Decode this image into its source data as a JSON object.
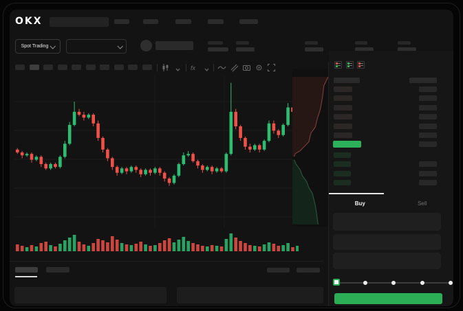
{
  "window": {
    "brand": "OKX"
  },
  "header": {
    "market_selector_label": "Spot Trading",
    "nav_placeholder_count": 5,
    "stat_placeholder_count": 5
  },
  "toolbar": {
    "timeframe_placeholder_count": 10,
    "icons": [
      "candlestick-chart",
      "chevron-down",
      "indicators-fx",
      "chevron-down",
      "line-overlay",
      "measure",
      "camera",
      "settings-gear",
      "fullscreen"
    ]
  },
  "chart_data": {
    "type": "candlestick",
    "x_unit": "time",
    "y_scale": {
      "min": 0,
      "max": 105
    },
    "grid": {
      "horizontal_lines": 5,
      "vertical_lines": 2
    },
    "colors": {
      "up": "#2ebd70",
      "down": "#ef5047"
    },
    "candles": [
      [
        54,
        55,
        51,
        52
      ],
      [
        52,
        53,
        48,
        50
      ],
      [
        50,
        52,
        49,
        51
      ],
      [
        51,
        52,
        45,
        47
      ],
      [
        47,
        50,
        46,
        49
      ],
      [
        49,
        50,
        42,
        44
      ],
      [
        44,
        45,
        40,
        41
      ],
      [
        41,
        45,
        40,
        44
      ],
      [
        44,
        45,
        41,
        42
      ],
      [
        42,
        50,
        41,
        49
      ],
      [
        49,
        60,
        48,
        58
      ],
      [
        58,
        73,
        57,
        71
      ],
      [
        71,
        87,
        70,
        80
      ],
      [
        80,
        82,
        77,
        78
      ],
      [
        78,
        80,
        74,
        76
      ],
      [
        76,
        79,
        75,
        78
      ],
      [
        78,
        79,
        70,
        72
      ],
      [
        72,
        74,
        60,
        62
      ],
      [
        62,
        63,
        52,
        54
      ],
      [
        54,
        55,
        46,
        48
      ],
      [
        48,
        49,
        40,
        42
      ],
      [
        42,
        43,
        36,
        38
      ],
      [
        38,
        42,
        37,
        41
      ],
      [
        41,
        42,
        37,
        39
      ],
      [
        39,
        43,
        38,
        42
      ],
      [
        42,
        43,
        38,
        40
      ],
      [
        40,
        41,
        35,
        37
      ],
      [
        37,
        41,
        36,
        40
      ],
      [
        40,
        41,
        36,
        38
      ],
      [
        38,
        42,
        37,
        41
      ],
      [
        41,
        42,
        36,
        38
      ],
      [
        38,
        39,
        32,
        34
      ],
      [
        34,
        35,
        29,
        31
      ],
      [
        31,
        37,
        30,
        36
      ],
      [
        36,
        45,
        35,
        44
      ],
      [
        44,
        52,
        43,
        50
      ],
      [
        50,
        53,
        49,
        51
      ],
      [
        51,
        52,
        45,
        46
      ],
      [
        46,
        47,
        41,
        43
      ],
      [
        43,
        44,
        38,
        40
      ],
      [
        40,
        43,
        39,
        42
      ],
      [
        42,
        43,
        37,
        39
      ],
      [
        39,
        42,
        38,
        41
      ],
      [
        41,
        42,
        38,
        39
      ],
      [
        39,
        52,
        38,
        51
      ],
      [
        51,
        100,
        50,
        80
      ],
      [
        80,
        82,
        68,
        70
      ],
      [
        70,
        71,
        60,
        62
      ],
      [
        62,
        63,
        54,
        56
      ],
      [
        56,
        58,
        52,
        54
      ],
      [
        54,
        58,
        53,
        57
      ],
      [
        57,
        58,
        52,
        54
      ],
      [
        54,
        61,
        53,
        60
      ],
      [
        60,
        74,
        59,
        72
      ],
      [
        72,
        74,
        65,
        67
      ],
      [
        67,
        68,
        62,
        64
      ],
      [
        64,
        72,
        63,
        71
      ],
      [
        71,
        86,
        70,
        83
      ],
      [
        83,
        87,
        78,
        80
      ],
      [
        80,
        95,
        79,
        92
      ]
    ],
    "volume": [
      10,
      8,
      6,
      9,
      7,
      12,
      14,
      9,
      7,
      11,
      16,
      20,
      24,
      14,
      10,
      8,
      12,
      18,
      16,
      13,
      22,
      17,
      12,
      10,
      9,
      11,
      14,
      10,
      8,
      9,
      12,
      16,
      19,
      13,
      17,
      21,
      15,
      12,
      10,
      8,
      7,
      9,
      8,
      7,
      18,
      26,
      20,
      15,
      12,
      9,
      8,
      7,
      10,
      13,
      11,
      8,
      9,
      12,
      6,
      8
    ]
  },
  "depth_chart": {
    "asks_color": "#8a423c",
    "bids_color": "#2d5c44",
    "asks_curve": [
      [
        100,
        0
      ],
      [
        88,
        6
      ],
      [
        84,
        14
      ],
      [
        78,
        22
      ],
      [
        70,
        28
      ],
      [
        64,
        34
      ],
      [
        52,
        38
      ],
      [
        46,
        44
      ],
      [
        30,
        48
      ],
      [
        22,
        50
      ],
      [
        8,
        52
      ],
      [
        5,
        54
      ]
    ],
    "bids_curve": [
      [
        5,
        56
      ],
      [
        10,
        59
      ],
      [
        22,
        63
      ],
      [
        28,
        67
      ],
      [
        40,
        71
      ],
      [
        46,
        75
      ],
      [
        56,
        79
      ],
      [
        60,
        83
      ],
      [
        64,
        87
      ],
      [
        68,
        93
      ],
      [
        70,
        97
      ],
      [
        72,
        100
      ]
    ]
  },
  "orderbook": {
    "view_icons": [
      "book-both",
      "book-bids",
      "book-asks"
    ],
    "header_bars": {
      "price_w": 38,
      "amount_w": 40
    },
    "asks": [
      {
        "price_w": 27,
        "amount_w": 26
      },
      {
        "price_w": 27,
        "amount_w": 26
      },
      {
        "price_w": 27,
        "amount_w": 26
      },
      {
        "price_w": 27,
        "amount_w": 26
      },
      {
        "price_w": 27,
        "amount_w": 26
      },
      {
        "price_w": 27,
        "amount_w": 26
      }
    ],
    "last_price": {
      "highlight_color": "#2cb15a",
      "amount_w": 26
    },
    "bids": [
      {
        "price_w": 25,
        "amount_w": 0
      },
      {
        "price_w": 25,
        "amount_w": 26
      },
      {
        "price_w": 25,
        "amount_w": 26
      },
      {
        "price_w": 25,
        "amount_w": 26
      }
    ]
  },
  "trade_panel": {
    "tabs": [
      {
        "label": "Buy",
        "active": true
      },
      {
        "label": "Sell",
        "active": false
      }
    ],
    "input_placeholder_count": 3,
    "slider": {
      "stop_count": 5,
      "selected_index": 0
    },
    "submit_color": "#2cae57"
  },
  "bottom_section": {
    "tab_placeholder_count": 2,
    "right_placeholder_count": 2,
    "panel_placeholder_count": 2
  }
}
